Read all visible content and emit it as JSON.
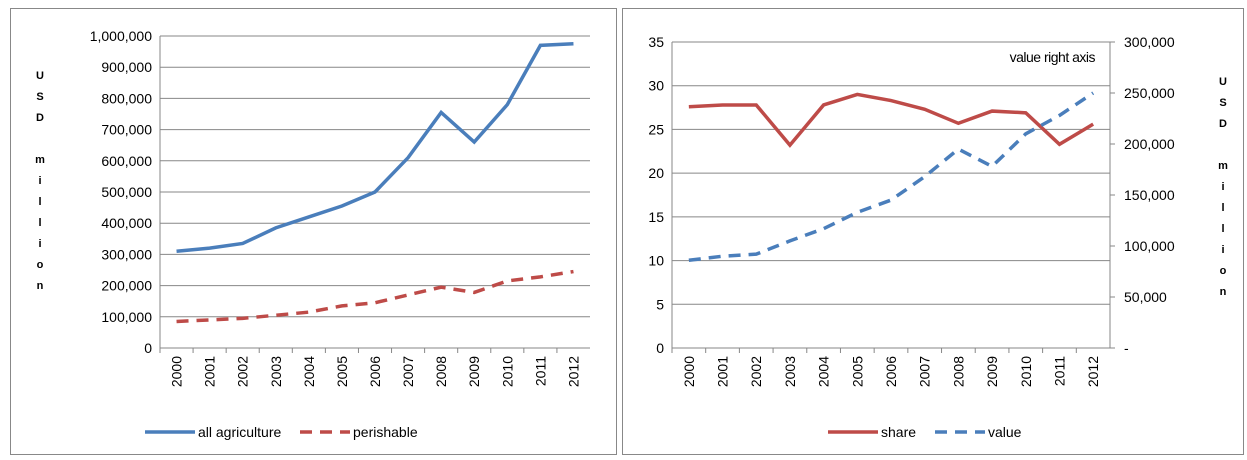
{
  "chart_data": [
    {
      "type": "line",
      "y_label": "USD million",
      "categories": [
        "2000",
        "2001",
        "2002",
        "2003",
        "2004",
        "2005",
        "2006",
        "2007",
        "2008",
        "2009",
        "2010",
        "2011",
        "2012"
      ],
      "ylim": [
        0,
        1000000
      ],
      "yticks": [
        0,
        {
          "value": 100000,
          "label": "100,000"
        },
        {
          "value": 200000,
          "label": "200,000"
        },
        {
          "value": 300000,
          "label": "300,000"
        },
        {
          "value": 400000,
          "label": "400,000"
        },
        {
          "value": 500000,
          "label": "500,000"
        },
        {
          "value": 600000,
          "label": "600,000"
        },
        {
          "value": 700000,
          "label": "700,000"
        },
        {
          "value": 800000,
          "label": "800,000"
        },
        {
          "value": 900000,
          "label": "900,000"
        },
        {
          "value": 1000000,
          "label": "1,000,000"
        }
      ],
      "grid": true,
      "legend": "bottom",
      "series": [
        {
          "name": "all agriculture",
          "color": "#4a7ebb",
          "dash": false,
          "values": [
            310000,
            320000,
            335000,
            385000,
            420000,
            455000,
            500000,
            610000,
            755000,
            660000,
            780000,
            970000,
            975000
          ]
        },
        {
          "name": "perishable",
          "color": "#be4b48",
          "dash": true,
          "values": [
            85000,
            90000,
            95000,
            105000,
            115000,
            135000,
            145000,
            170000,
            195000,
            178000,
            215000,
            228000,
            245000
          ]
        }
      ]
    },
    {
      "type": "line",
      "y2_label": "USD million",
      "annotation": "value right axis",
      "categories": [
        "2000",
        "2001",
        "2002",
        "2003",
        "2004",
        "2005",
        "2006",
        "2007",
        "2008",
        "2009",
        "2010",
        "2011",
        "2012"
      ],
      "ylim": [
        0,
        35
      ],
      "yticks": [
        0,
        5,
        10,
        15,
        20,
        25,
        30,
        35
      ],
      "y2lim": [
        0,
        300000
      ],
      "y2ticks": [
        {
          "value": 0,
          "label": "-"
        },
        {
          "value": 50000,
          "label": "50,000"
        },
        {
          "value": 100000,
          "label": "100,000"
        },
        {
          "value": 150000,
          "label": "150,000"
        },
        {
          "value": 200000,
          "label": "200,000"
        },
        {
          "value": 250000,
          "label": "250,000"
        },
        {
          "value": 300000,
          "label": "300,000"
        }
      ],
      "grid": true,
      "legend": "bottom",
      "series": [
        {
          "name": "share",
          "color": "#be4b48",
          "dash": false,
          "values": [
            27.6,
            27.8,
            27.8,
            23.2,
            27.8,
            29.0,
            28.3,
            27.3,
            25.7,
            27.1,
            26.9,
            23.3,
            25.6
          ]
        },
        {
          "name": "value",
          "color": "#4a7ebb",
          "dash": true,
          "axis": "y2",
          "values": [
            86000,
            90000,
            92000,
            105000,
            117000,
            133000,
            145000,
            168000,
            195000,
            178000,
            210000,
            228000,
            250000
          ]
        }
      ]
    }
  ]
}
